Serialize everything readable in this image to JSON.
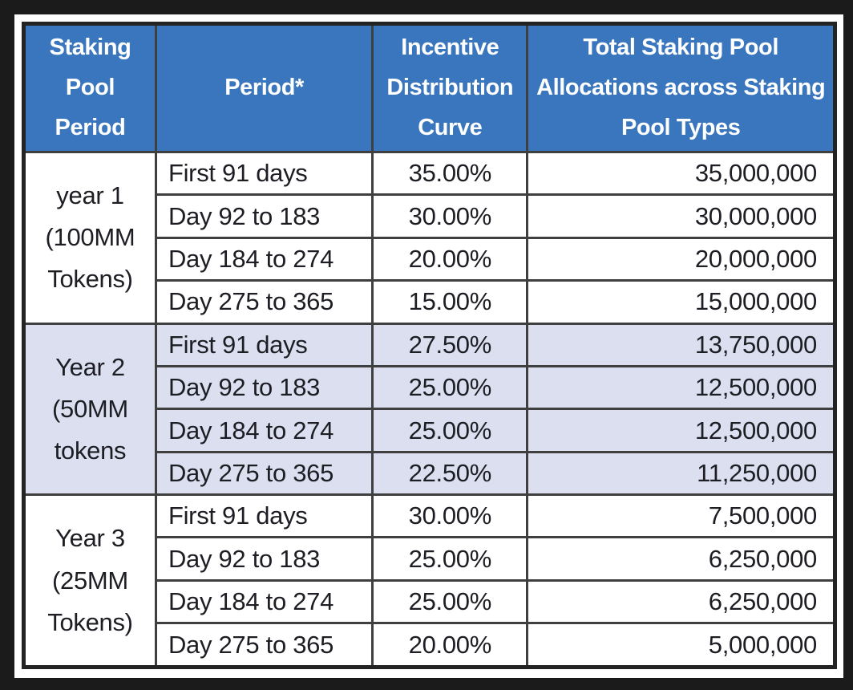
{
  "table": {
    "headers": [
      "Staking Pool Period",
      "Period*",
      "Incentive Distribution Curve",
      "Total Staking Pool Allocations across Staking Pool Types"
    ],
    "groups": [
      {
        "label": "year 1\n(100MM\nTokens)",
        "rows": [
          {
            "period": "First 91 days",
            "curve": "35.00%",
            "allocation": "35,000,000"
          },
          {
            "period": "Day 92 to 183",
            "curve": "30.00%",
            "allocation": "30,000,000"
          },
          {
            "period": "Day 184 to 274",
            "curve": "20.00%",
            "allocation": "20,000,000"
          },
          {
            "period": "Day 275 to 365",
            "curve": "15.00%",
            "allocation": "15,000,000"
          }
        ]
      },
      {
        "label": "Year 2\n(50MM\ntokens",
        "rows": [
          {
            "period": "First 91 days",
            "curve": "27.50%",
            "allocation": "13,750,000"
          },
          {
            "period": "Day 92 to 183",
            "curve": "25.00%",
            "allocation": "12,500,000"
          },
          {
            "period": "Day 184 to 274",
            "curve": "25.00%",
            "allocation": "12,500,000"
          },
          {
            "period": "Day 275 to 365",
            "curve": "22.50%",
            "allocation": "11,250,000"
          }
        ]
      },
      {
        "label": "Year 3\n(25MM\nTokens)",
        "rows": [
          {
            "period": "First 91 days",
            "curve": "30.00%",
            "allocation": "7,500,000"
          },
          {
            "period": "Day 92 to 183",
            "curve": "25.00%",
            "allocation": "6,250,000"
          },
          {
            "period": "Day 184 to 274",
            "curve": "25.00%",
            "allocation": "6,250,000"
          },
          {
            "period": "Day 275 to 365",
            "curve": "20.00%",
            "allocation": "5,000,000"
          }
        ]
      }
    ]
  },
  "colors": {
    "page_bg": "#1b1b1b",
    "card_bg": "#ffffff",
    "header_bg": "#3a76be",
    "header_text": "#ffffff",
    "body_text": "#1d1d24",
    "shaded_row_bg": "#dcdff0",
    "grid_line": "#3f3f3f",
    "outer_border": "#232323"
  }
}
